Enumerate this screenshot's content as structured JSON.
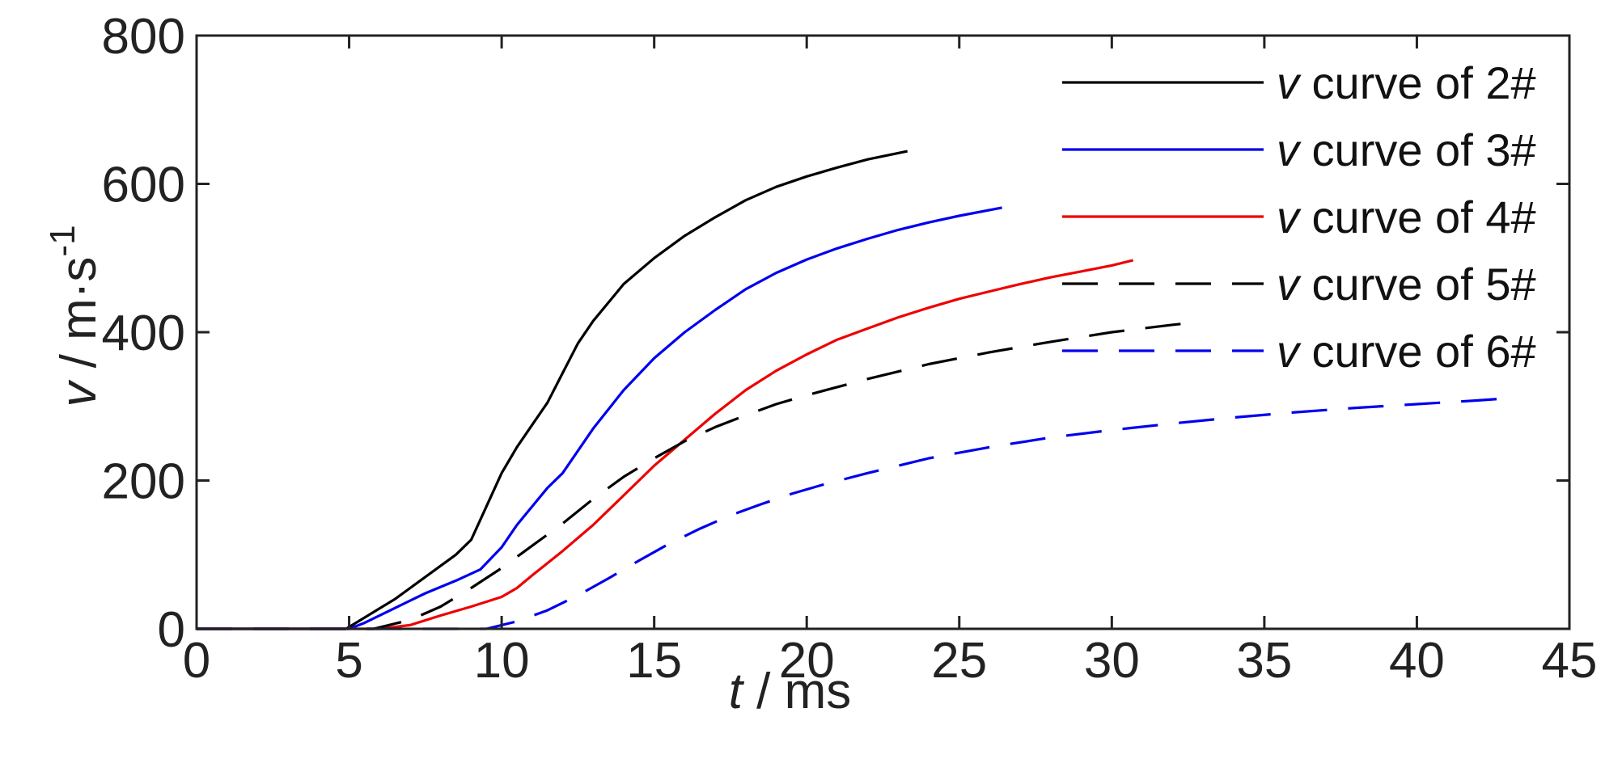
{
  "chart_data": {
    "type": "line",
    "xlabel": {
      "var": "t",
      "unit": " / ms"
    },
    "ylabel": {
      "var": "v",
      "unit": " / m·s",
      "sup": "-1"
    },
    "xlim": [
      0,
      45
    ],
    "ylim": [
      0,
      800
    ],
    "xticks": [
      0,
      5,
      10,
      15,
      20,
      25,
      30,
      35,
      40,
      45
    ],
    "yticks": [
      0,
      200,
      400,
      600,
      800
    ],
    "grid": false,
    "legend_position": "top-right",
    "series": [
      {
        "name": "v curve of 2#",
        "legend_var": "v",
        "legend_rest": " curve of 2#",
        "color": "#000000",
        "dash": "solid",
        "x": [
          0,
          4.9,
          5.5,
          6.5,
          7.5,
          8.5,
          9,
          9.5,
          10,
          10.5,
          11,
          11.5,
          12,
          12.5,
          13,
          14,
          15,
          16,
          17,
          18,
          19,
          20,
          21,
          22,
          23.3
        ],
        "y": [
          0,
          0,
          15,
          40,
          70,
          100,
          120,
          165,
          210,
          245,
          275,
          305,
          345,
          385,
          415,
          465,
          500,
          530,
          555,
          578,
          596,
          610,
          622,
          633,
          644
        ]
      },
      {
        "name": "v curve of 3#",
        "legend_var": "v",
        "legend_rest": " curve of 3#",
        "color": "#0000ee",
        "dash": "solid",
        "x": [
          0,
          5,
          5.5,
          6.5,
          7.5,
          8.5,
          9.3,
          10,
          10.5,
          11,
          11.5,
          12,
          13,
          14,
          15,
          16,
          17,
          18,
          19,
          20,
          21,
          22,
          23,
          24,
          25,
          26.4
        ],
        "y": [
          0,
          0,
          8,
          28,
          48,
          65,
          80,
          110,
          140,
          165,
          190,
          210,
          270,
          322,
          365,
          400,
          430,
          458,
          480,
          498,
          513,
          526,
          538,
          548,
          557,
          568
        ]
      },
      {
        "name": "v curve of 4#",
        "legend_var": "v",
        "legend_rest": " curve of 4#",
        "color": "#ee0000",
        "dash": "solid",
        "x": [
          0,
          6,
          7,
          8,
          9,
          10,
          10.5,
          11,
          12,
          13,
          14,
          15,
          16,
          17,
          18,
          19,
          20,
          21,
          22,
          23,
          24,
          25,
          26,
          27,
          28,
          29,
          30,
          30.7
        ],
        "y": [
          0,
          0,
          5,
          18,
          30,
          43,
          55,
          72,
          105,
          140,
          180,
          220,
          255,
          290,
          322,
          348,
          370,
          390,
          405,
          420,
          433,
          445,
          455,
          465,
          474,
          482,
          490,
          497
        ]
      },
      {
        "name": "v curve of 5#",
        "legend_var": "v",
        "legend_rest": " curve of 5#",
        "color": "#000000",
        "dash": "44,26",
        "x": [
          0,
          5.8,
          7,
          8,
          9,
          10,
          11,
          12,
          13,
          14,
          15,
          16,
          17,
          18,
          19,
          20,
          22,
          24,
          26,
          28,
          30,
          32,
          32.7
        ],
        "y": [
          0,
          0,
          12,
          30,
          55,
          82,
          112,
          142,
          175,
          205,
          230,
          253,
          272,
          288,
          303,
          315,
          337,
          357,
          373,
          387,
          400,
          410,
          413
        ]
      },
      {
        "name": "v curve of 6#",
        "legend_var": "v",
        "legend_rest": " curve of 6#",
        "color": "#0000ee",
        "dash": "44,26",
        "x": [
          0,
          9.5,
          10.5,
          11.5,
          12.5,
          13.5,
          14.5,
          15.5,
          16.5,
          17.5,
          18.5,
          19.5,
          20.5,
          22,
          24,
          26,
          28,
          30,
          32,
          34,
          36,
          38,
          40,
          42,
          43
        ],
        "y": [
          0,
          0,
          10,
          25,
          45,
          68,
          92,
          115,
          135,
          153,
          168,
          182,
          194,
          210,
          230,
          245,
          258,
          268,
          277,
          285,
          292,
          298,
          303,
          308,
          311
        ]
      }
    ]
  }
}
